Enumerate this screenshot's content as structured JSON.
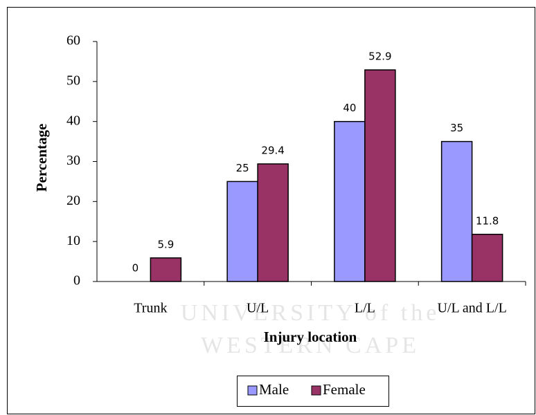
{
  "chart_data": {
    "type": "bar",
    "y_label": "Percentage",
    "x_label": "Injury location",
    "categories": [
      "Trunk",
      "U/L",
      "L/L",
      "U/L and L/L"
    ],
    "series": [
      {
        "name": "Male",
        "color": "#9999ff",
        "values": [
          0,
          25,
          40,
          35
        ]
      },
      {
        "name": "Female",
        "color": "#993366",
        "values": [
          5.9,
          29.4,
          52.9,
          11.8
        ]
      }
    ],
    "ylim": [
      0,
      60
    ],
    "yticks": [
      0,
      10,
      20,
      30,
      40,
      50,
      60
    ],
    "legend": "bottom",
    "watermark": [
      "UNIVERSITY of the",
      "WESTERN CAPE"
    ]
  }
}
